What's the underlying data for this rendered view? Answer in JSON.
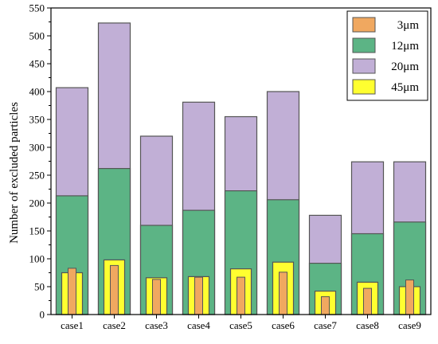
{
  "chart_data": {
    "type": "bar",
    "title": "",
    "xlabel": "",
    "ylabel": "Number of excluded particles",
    "categories": [
      "case1",
      "case2",
      "case3",
      "case4",
      "case5",
      "case6",
      "case7",
      "case8",
      "case9"
    ],
    "ylim": [
      0,
      550
    ],
    "yticks": [
      0,
      50,
      100,
      150,
      200,
      250,
      300,
      350,
      400,
      450,
      500,
      550
    ],
    "series": [
      {
        "name": "3μm",
        "color": "#f0a860",
        "values": [
          83,
          88,
          63,
          67,
          67,
          76,
          32,
          47,
          62
        ]
      },
      {
        "name": "12μm",
        "color": "#5cb485",
        "values": [
          213,
          262,
          160,
          187,
          222,
          206,
          92,
          145,
          166
        ]
      },
      {
        "name": "20μm",
        "color": "#c1afd6",
        "values": [
          407,
          523,
          320,
          381,
          355,
          400,
          178,
          274,
          274
        ]
      },
      {
        "name": "45μm",
        "color": "#ffff30",
        "values": [
          75,
          98,
          66,
          68,
          82,
          94,
          42,
          58,
          50
        ]
      }
    ],
    "legend_position": "top-right",
    "grid": false
  }
}
